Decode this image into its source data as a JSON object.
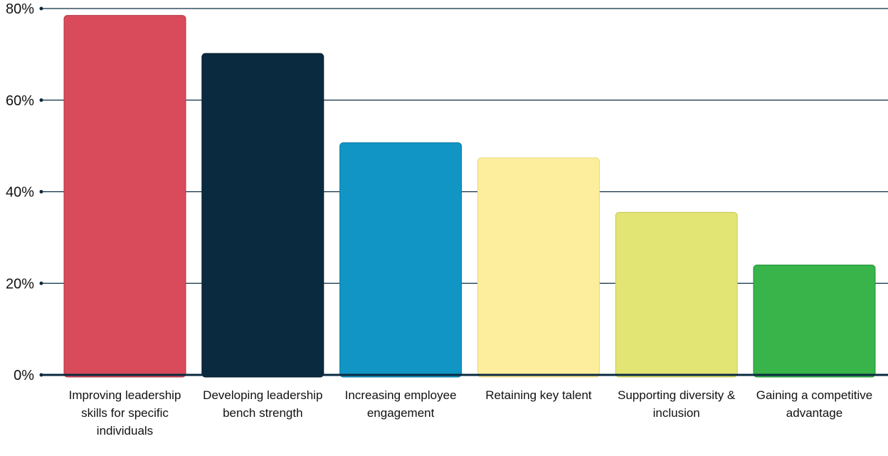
{
  "chart_data": {
    "type": "bar",
    "categories": [
      "Improving leadership skills for specific individuals",
      "Developing leadership bench strength",
      "Increasing employee engagement",
      "Retaining key talent",
      "Supporting diversity & inclusion",
      "Gaining a competitive advantage"
    ],
    "values": [
      78.5,
      70.2,
      50.7,
      47.4,
      35.5,
      24.0
    ],
    "value_unit": "%",
    "ylim": [
      0,
      80
    ],
    "yticks": [
      0,
      20,
      40,
      60,
      80
    ],
    "ytick_labels": [
      "0%",
      "20%",
      "40%",
      "60%",
      "80%"
    ],
    "title": "",
    "xlabel": "",
    "ylabel": "",
    "grid": true,
    "legend": "none",
    "bar_colors": [
      "#d94a5a",
      "#0a2a40",
      "#1095c4",
      "#fdee9e",
      "#e2e473",
      "#38b44a"
    ],
    "bar_stroke_colors": [
      "#b53745",
      "#06192a",
      "#0b7aa3",
      "#e8d77c",
      "#c8ca56",
      "#249037"
    ],
    "gridline_color": "#0a2a40"
  }
}
